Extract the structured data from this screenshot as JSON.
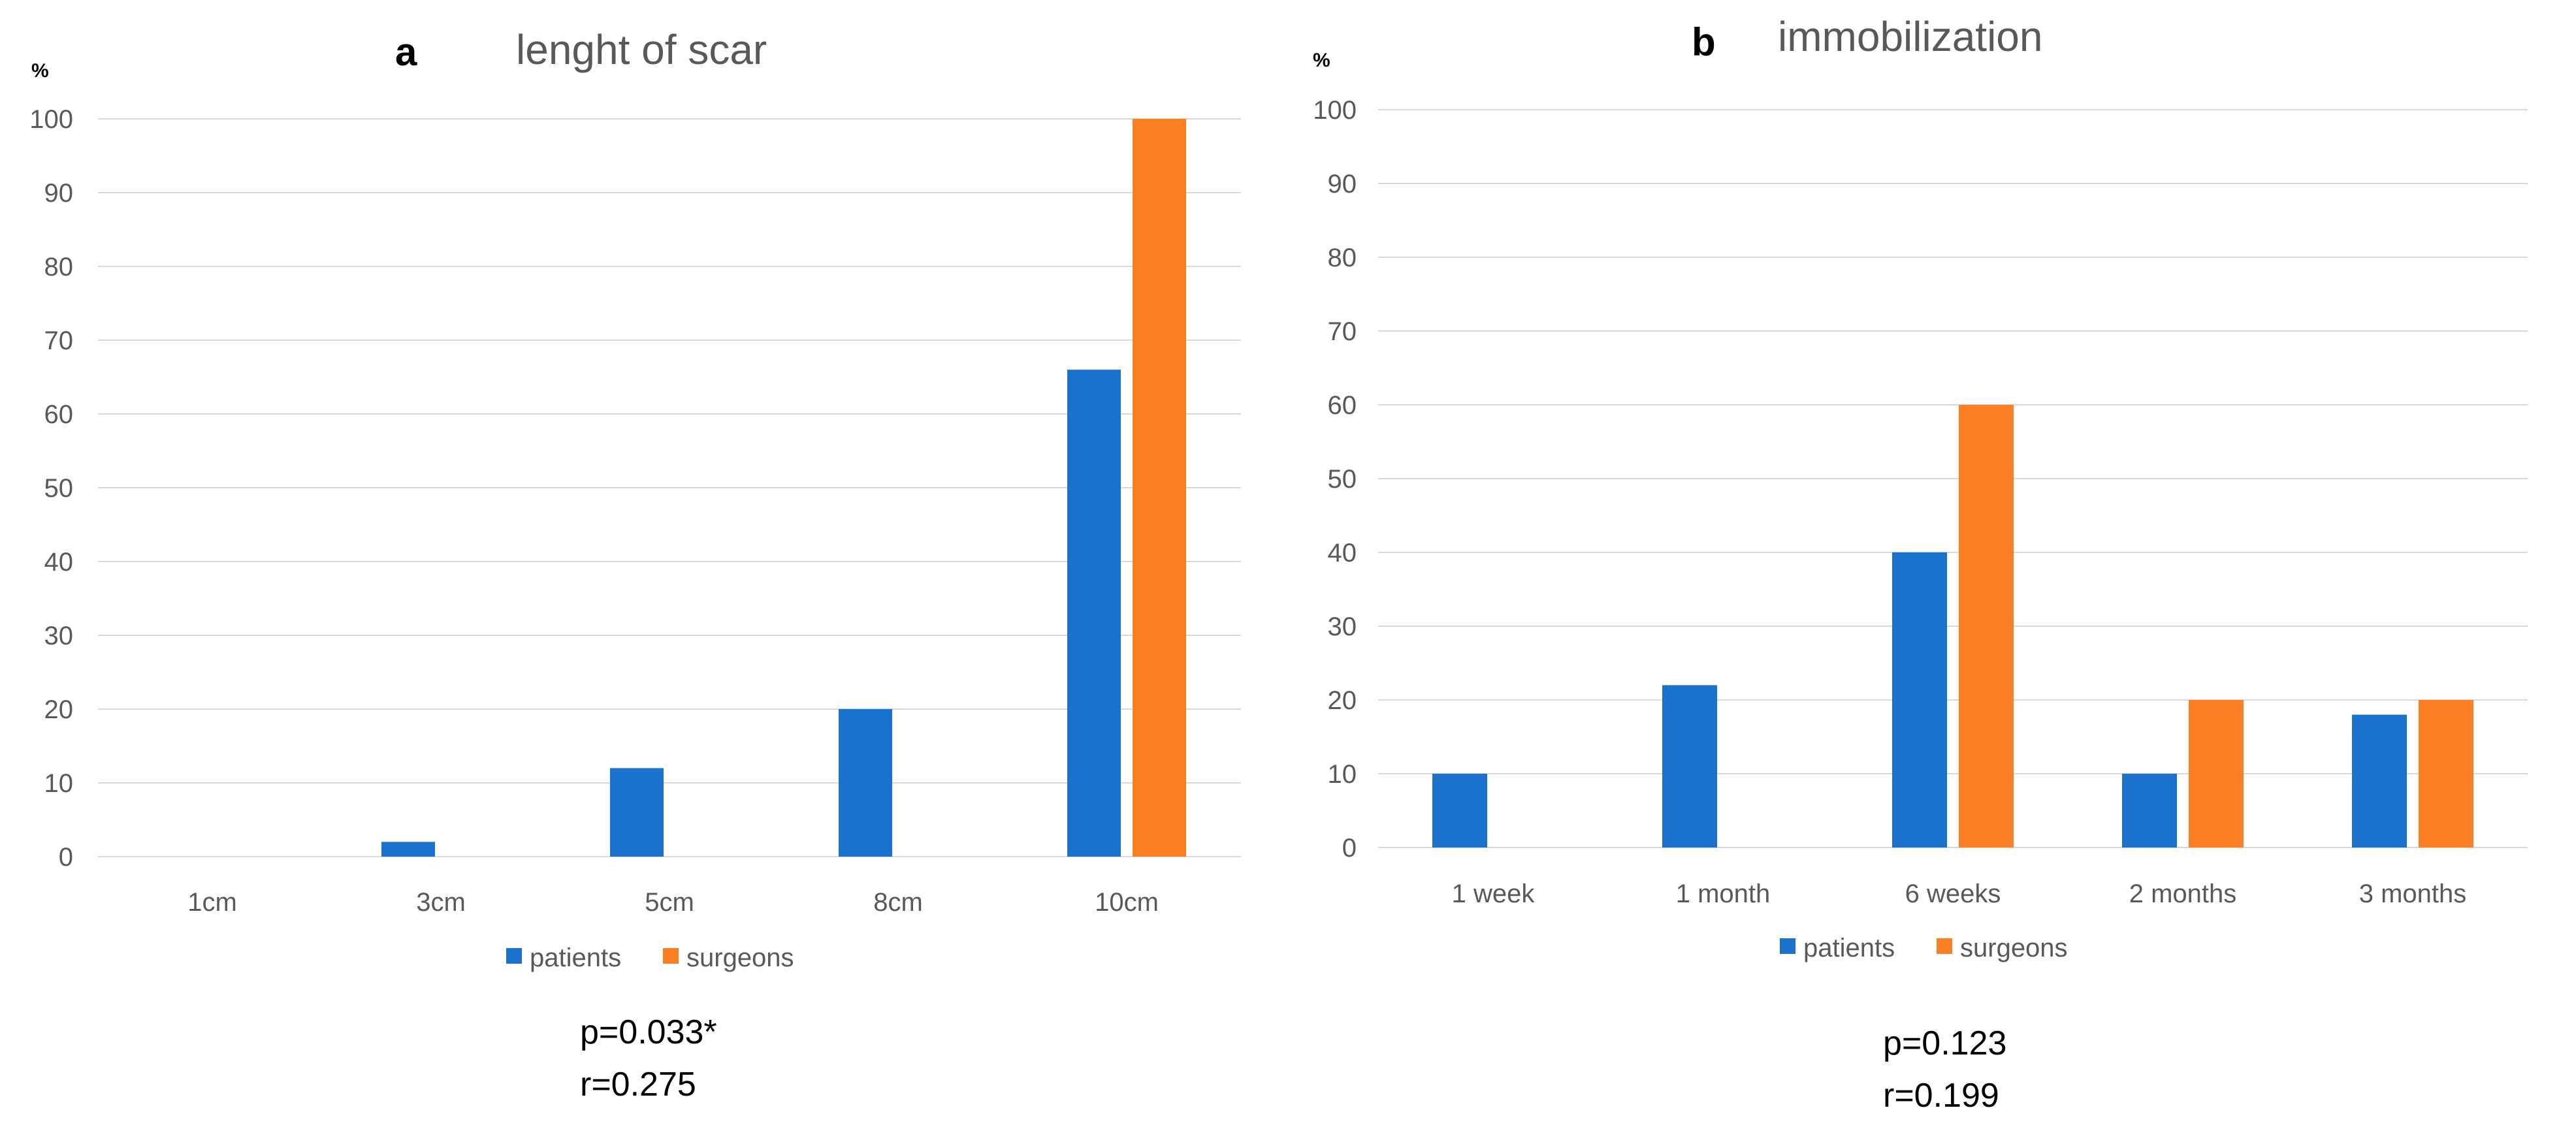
{
  "colors": {
    "patients": "#1a72cc",
    "surgeons": "#fd7f23"
  },
  "chart_data": [
    {
      "type": "bar",
      "panel": "a",
      "title": "lenght of scar",
      "ylabel": "%",
      "xlabel": "",
      "ylim": [
        0,
        100
      ],
      "yticks": [
        0,
        10,
        20,
        30,
        40,
        50,
        60,
        70,
        80,
        90,
        100
      ],
      "grid": true,
      "legend_position": "bottom",
      "categories": [
        "1cm",
        "3cm",
        "5cm",
        "8cm",
        "10cm"
      ],
      "series": [
        {
          "name": "patients",
          "values": [
            0,
            2,
            12,
            20,
            66
          ]
        },
        {
          "name": "surgeons",
          "values": [
            0,
            0,
            0,
            0,
            100
          ]
        }
      ],
      "annotations": [
        "p=0.033*",
        "r=0.275"
      ]
    },
    {
      "type": "bar",
      "panel": "b",
      "title": "immobilization",
      "ylabel": "%",
      "xlabel": "",
      "ylim": [
        0,
        100
      ],
      "yticks": [
        0,
        10,
        20,
        30,
        40,
        50,
        60,
        70,
        80,
        90,
        100
      ],
      "grid": true,
      "legend_position": "bottom",
      "categories": [
        "1 week",
        "1 month",
        "6 weeks",
        "2 months",
        "3 months"
      ],
      "series": [
        {
          "name": "patients",
          "values": [
            10,
            22,
            40,
            10,
            18
          ]
        },
        {
          "name": "surgeons",
          "values": [
            0,
            0,
            60,
            20,
            20
          ]
        }
      ],
      "annotations": [
        "p=0.123",
        "r=0.199"
      ]
    }
  ]
}
